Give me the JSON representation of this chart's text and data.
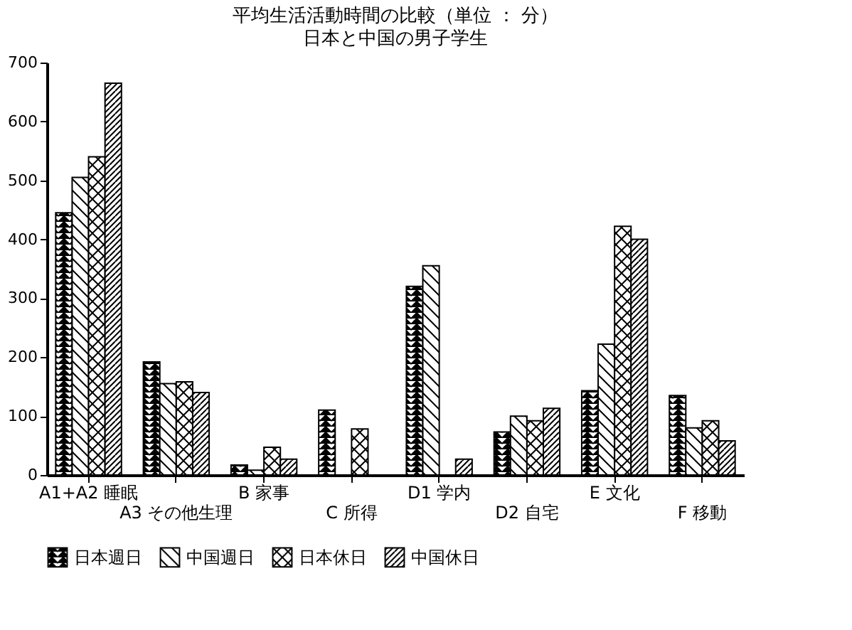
{
  "chart_data": {
    "type": "bar",
    "title": "平均生活活動時間の比較（単位 ： 分）",
    "subtitle": "日本と中国の男子学生",
    "categories": [
      "A1+A2 睡眠",
      "A3 その他生理",
      "B 家事",
      "C 所得",
      "D1 学内",
      "D2 自宅",
      "E 文化",
      "F 移動"
    ],
    "series": [
      {
        "name": "日本週日",
        "color": "#000000",
        "values": [
          445,
          192,
          17,
          110,
          320,
          73,
          143,
          135
        ]
      },
      {
        "name": "中国週日",
        "color": "#000000",
        "values": [
          505,
          155,
          8,
          null,
          355,
          100,
          222,
          80
        ]
      },
      {
        "name": "日本休日",
        "color": "#000000",
        "values": [
          540,
          158,
          47,
          78,
          null,
          92,
          422,
          92
        ]
      },
      {
        "name": "中国休日",
        "color": "#000000",
        "values": [
          665,
          140,
          27,
          null,
          27,
          113,
          400,
          58
        ]
      }
    ],
    "ylim": [
      0,
      700
    ],
    "yticks": [
      0,
      100,
      200,
      300,
      400,
      500,
      600,
      700
    ],
    "legend": "bottom"
  }
}
